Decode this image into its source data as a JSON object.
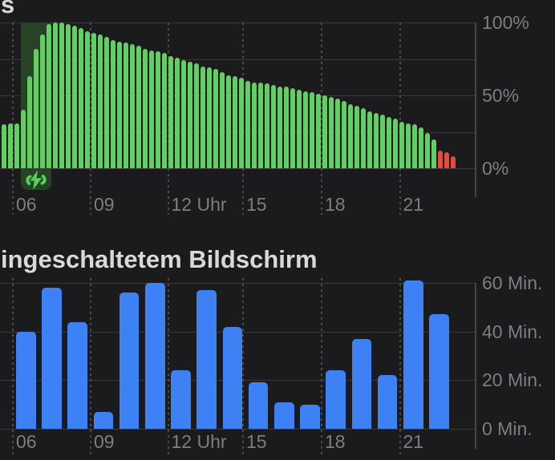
{
  "header": {
    "clipped_heading_fragment": "s"
  },
  "battery_section": {
    "y_axis": {
      "labels": [
        "100%",
        "50%",
        "0%"
      ],
      "values": [
        100,
        50,
        0
      ]
    },
    "x_axis": {
      "labels": [
        "06",
        "09",
        "12 Uhr",
        "15",
        "18",
        "21"
      ]
    },
    "colors": {
      "bar": "#63ce61",
      "low_battery_bar": "#e84a3d",
      "charging_overlay": "#274227",
      "bolt": "#55d05b"
    }
  },
  "screen_section": {
    "title": "ingeschaltetem Bildschirm",
    "y_axis": {
      "labels": [
        "60 Min.",
        "40 Min.",
        "20 Min.",
        "0 Min."
      ],
      "values": [
        60,
        40,
        20,
        0
      ]
    },
    "x_axis": {
      "labels": [
        "06",
        "09",
        "12 Uhr",
        "15",
        "18",
        "21"
      ]
    },
    "colors": {
      "bar": "#3d81f4"
    }
  },
  "chart_data": [
    {
      "type": "bar",
      "name": "battery-level",
      "unit": "%",
      "ylim": [
        0,
        100
      ],
      "y_ticks": [
        100,
        50,
        0
      ],
      "grid_values": [
        100,
        75,
        50,
        25,
        0
      ],
      "x_tick_labels": [
        "06",
        "09",
        "12 Uhr",
        "15",
        "18",
        "21"
      ],
      "values": [
        30,
        31,
        31,
        40,
        63,
        82,
        92,
        99,
        100,
        100,
        99,
        98,
        96,
        94,
        93,
        92,
        90,
        88,
        87,
        86,
        85,
        84,
        82,
        81,
        80,
        79,
        77,
        76,
        74,
        73,
        72,
        70,
        69,
        68,
        66,
        64,
        63,
        62,
        60,
        59,
        59,
        58,
        57,
        56,
        56,
        55,
        54,
        53,
        52,
        51,
        50,
        49,
        48,
        46,
        44,
        43,
        41,
        39,
        38,
        37,
        35,
        34,
        32,
        31,
        30,
        28,
        24,
        20,
        12,
        11,
        8
      ],
      "charging_bar_range": [
        3,
        7
      ],
      "low_battery_from_index": 68,
      "legend": false,
      "grid": true
    },
    {
      "type": "bar",
      "name": "screen-on-time",
      "unit": "Min.",
      "ylim": [
        0,
        60
      ],
      "y_ticks": [
        60,
        40,
        20,
        0
      ],
      "grid_values": [
        60,
        40,
        20,
        0
      ],
      "x_tick_labels": [
        "06",
        "09",
        "12 Uhr",
        "15",
        "18",
        "21"
      ],
      "hours": [
        6,
        7,
        8,
        9,
        10,
        11,
        12,
        13,
        14,
        15,
        16,
        17,
        18,
        19,
        20,
        21,
        22
      ],
      "values": [
        40,
        58,
        44,
        7,
        56,
        60,
        24,
        57,
        42,
        19,
        11,
        10,
        24,
        37,
        22,
        61,
        47
      ],
      "legend": false,
      "grid": true
    }
  ]
}
